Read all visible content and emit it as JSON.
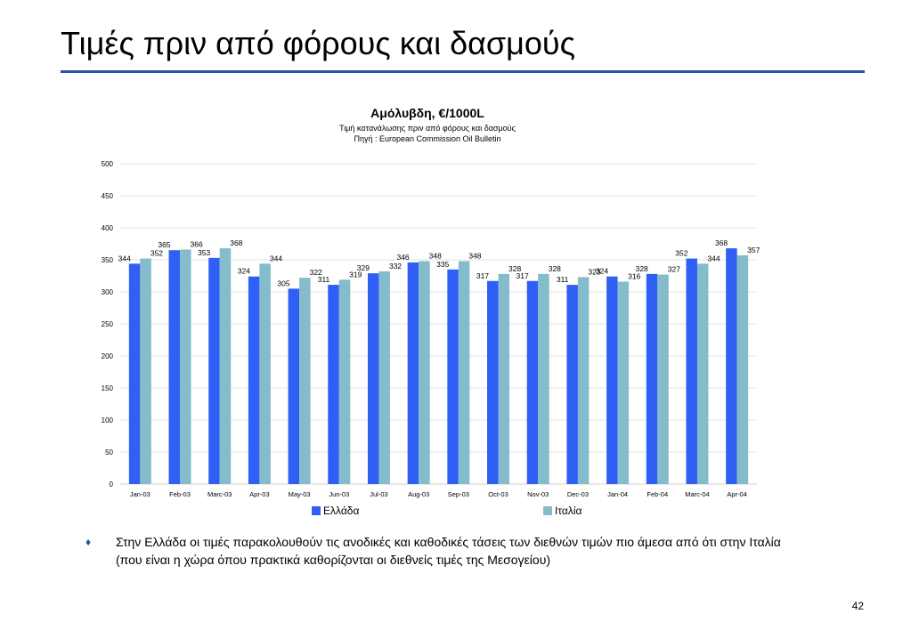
{
  "slide": {
    "title": "Τιμές πριν από φόρους και δασμούς",
    "bullet": "Στην Ελλάδα οι τιμές παρακολουθούν τις ανοδικές και καθοδικές τάσεις των διεθνών τιμών πιο άμεσα από ότι στην Ιταλία (που είναι η χώρα όπου πρακτικά καθορίζονται οι διεθνείς τιμές της Μεσογείου)",
    "bullet_icon": "diamond-bullet-icon",
    "page_number": "42"
  },
  "colors": {
    "greece": "#2f5ff5",
    "italy": "#84bccb",
    "title_rule": "#2a52a6",
    "grid": "#e3e3e3"
  },
  "chart_data": {
    "type": "bar",
    "title": "Αμόλυβδη, €/1000L",
    "subtitle": "Τιμή κατανάλωσης πριν από φόρους και δασμούς",
    "source": "Πηγή : European Commission Oil Bulletin",
    "categories": [
      "Jan-03",
      "Feb-03",
      "Marc-03",
      "Apr-03",
      "May-03",
      "Jun-03",
      "Jul-03",
      "Aug-03",
      "Sep-03",
      "Oct-03",
      "Nov-03",
      "Dec-03",
      "Jan-04",
      "Feb-04",
      "Marc-04",
      "Apr-04"
    ],
    "series": [
      {
        "name": "Ελλάδα",
        "values": [
          344,
          365,
          353,
          324,
          305,
          311,
          329,
          346,
          335,
          317,
          317,
          311,
          324,
          328,
          352,
          368
        ]
      },
      {
        "name": "Ιταλία",
        "values": [
          352,
          366,
          368,
          344,
          322,
          319,
          332,
          348,
          348,
          328,
          328,
          323,
          316,
          327,
          344,
          357
        ]
      }
    ],
    "ylim": [
      0,
      500
    ],
    "yticks": [
      0,
      50,
      100,
      150,
      200,
      250,
      300,
      350,
      400,
      450,
      500
    ],
    "grid": true,
    "legend_position": "bottom",
    "data_labels": true
  }
}
